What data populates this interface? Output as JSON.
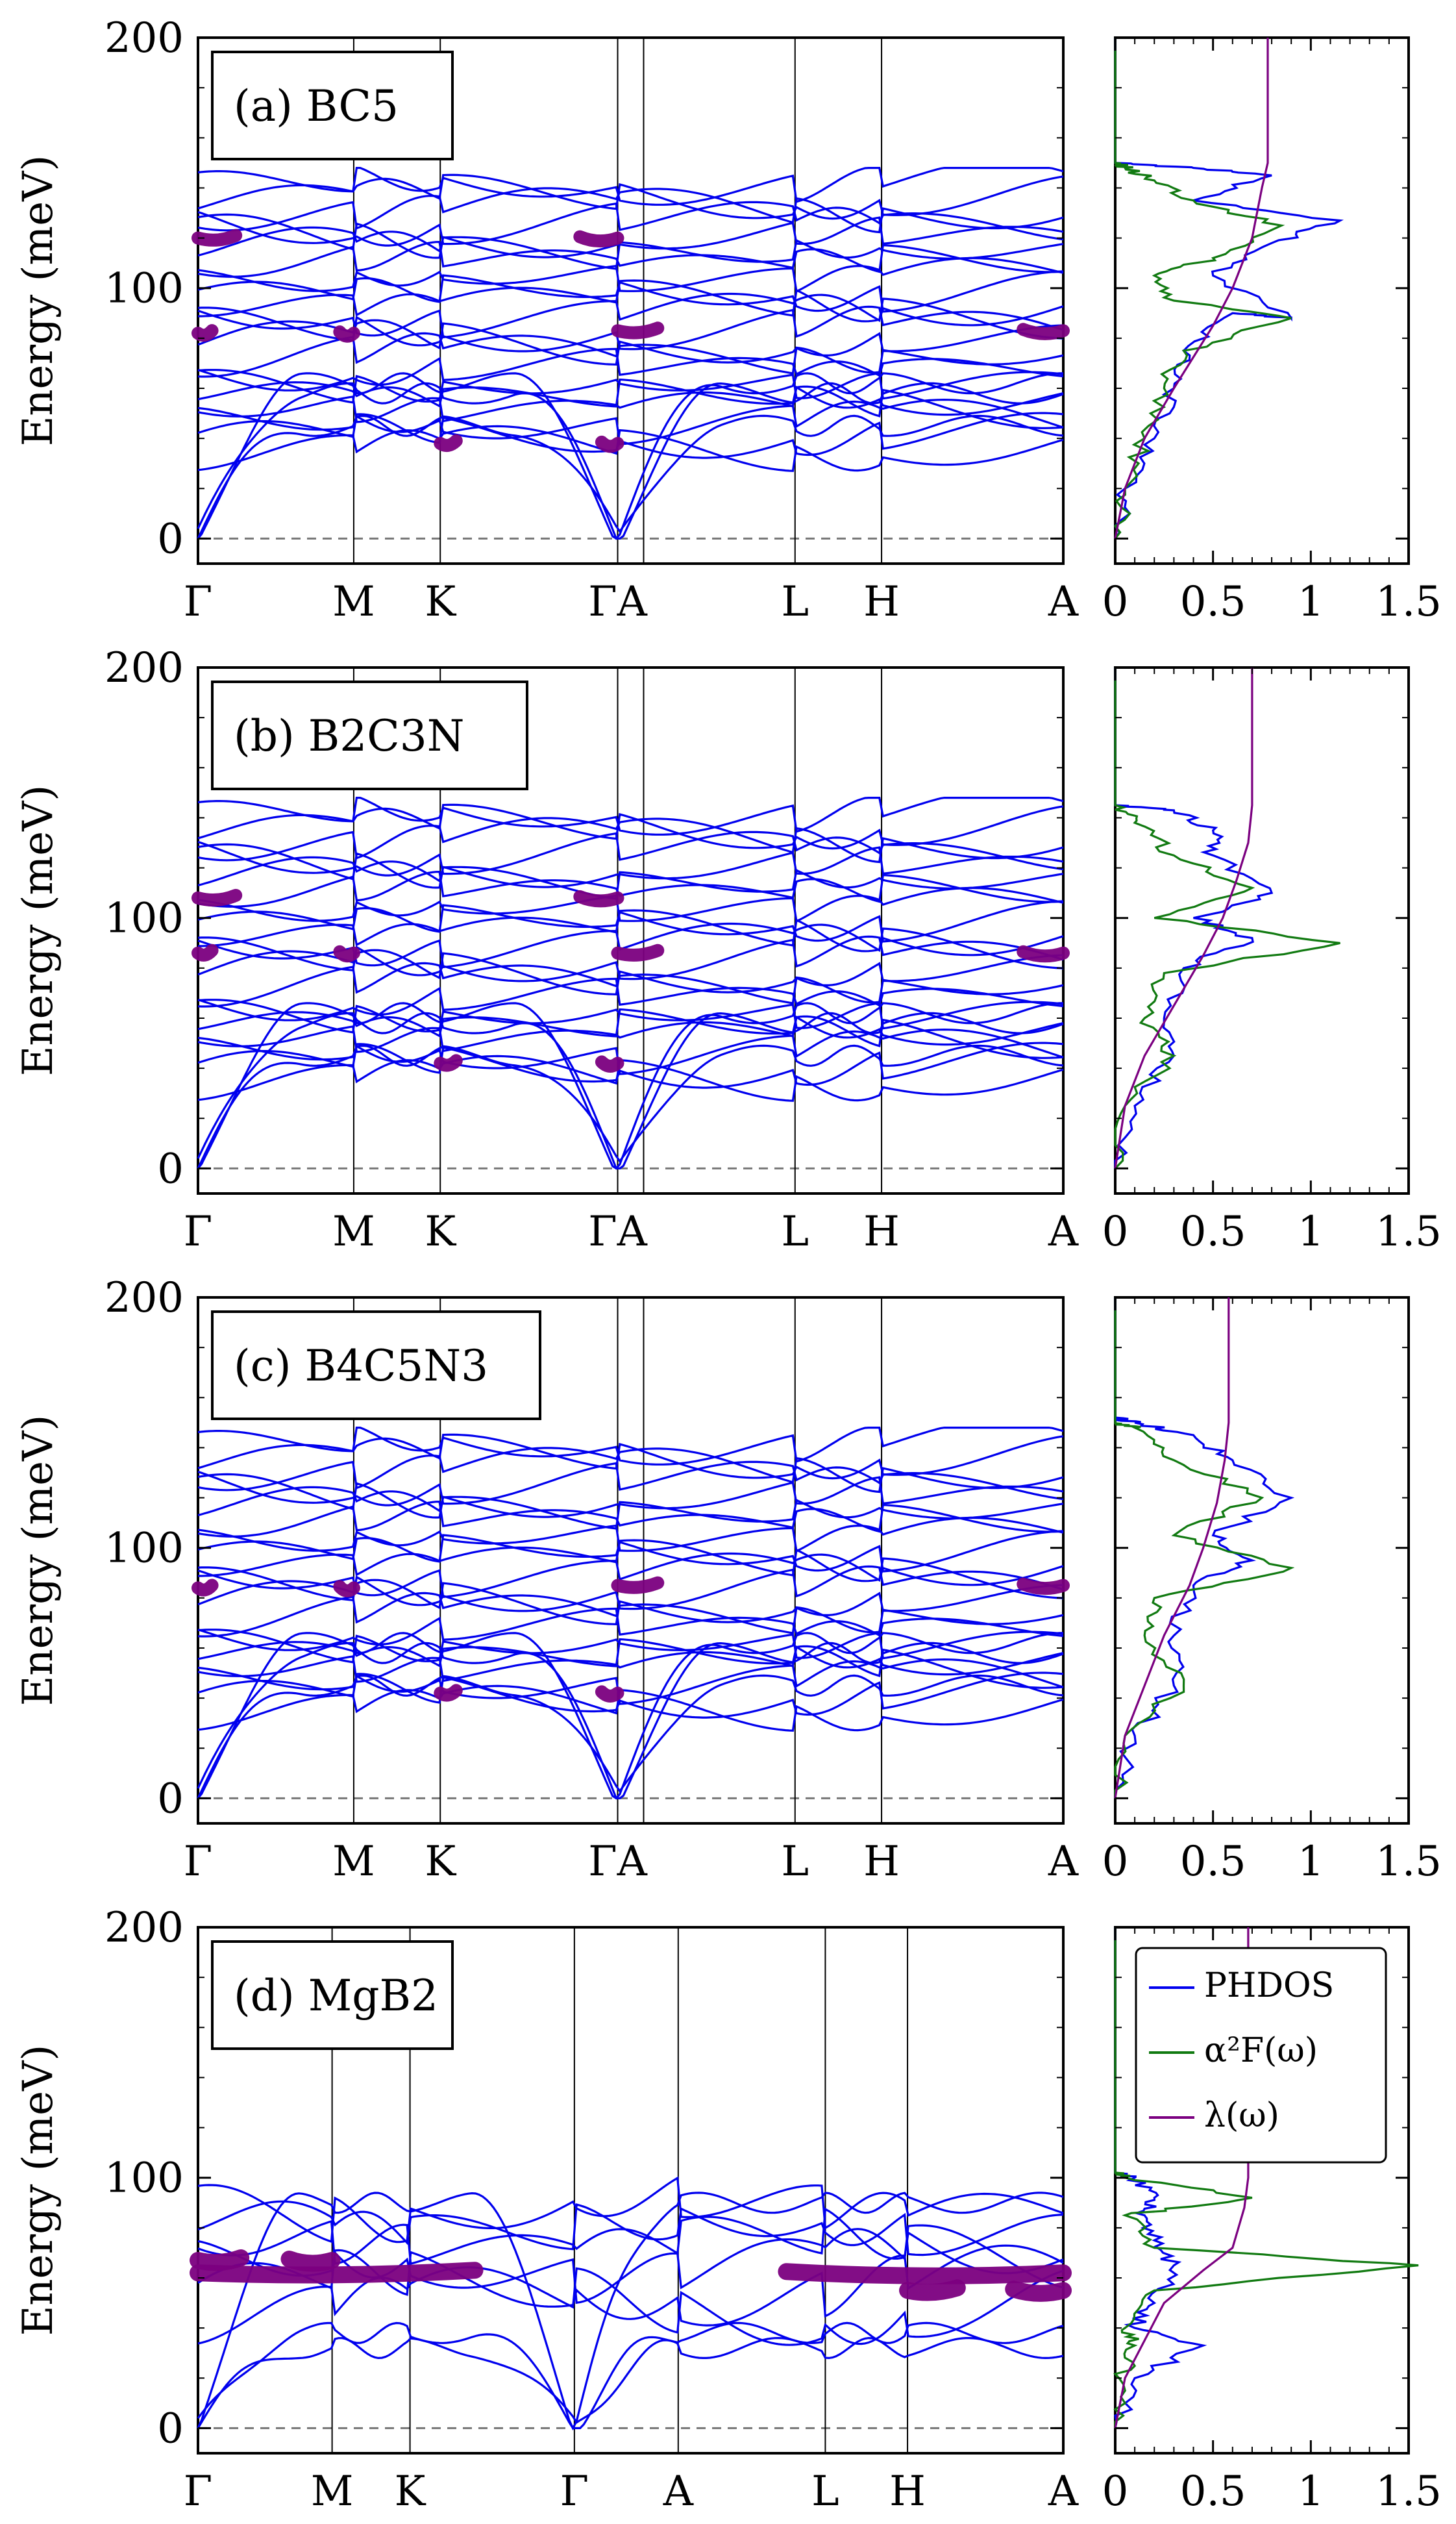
{
  "colors": {
    "band": "#0000ee",
    "band_highlight": "#7b0080",
    "phdos": "#0000ee",
    "a2f": "#117a11",
    "lambda": "#7b0080",
    "zero_line": "#777777"
  },
  "chart_data": [
    {
      "id": "a",
      "type": "line",
      "kind": "phonon-dispersion",
      "label_prefix": "(a) BC",
      "label_subs": [
        {
          "text": "5",
          "after": ""
        }
      ],
      "label_text": "(a) BC5",
      "ylabel": "Energy (meV)",
      "ylim": [
        -10,
        200
      ],
      "yticks": [
        0,
        100,
        200
      ],
      "path_labels": [
        "Γ",
        "M",
        "K",
        "ΓA",
        "L",
        "H",
        "A"
      ],
      "path_positions": [
        0,
        0.18,
        0.28,
        0.485,
        0.69,
        0.79,
        1.0
      ],
      "vlines": [
        0.18,
        0.28,
        0.485,
        0.515,
        0.69,
        0.79
      ],
      "bands_at_nodes": {
        "Gamma": [
          0,
          0,
          0,
          82,
          82,
          120,
          120,
          130,
          133,
          140,
          145
        ],
        "M": [
          58,
          63,
          75,
          88,
          105,
          120,
          128,
          135,
          141
        ],
        "K": [
          61,
          66,
          79,
          90,
          112,
          123,
          131,
          136,
          145
        ]
      },
      "highlight_regions": [
        {
          "from": "Γ",
          "to": "M",
          "energy": 82
        },
        {
          "from": "Γ",
          "to": "ΓA",
          "energy": 120
        },
        {
          "from": "K",
          "to": "ΓA",
          "energy": 38
        },
        {
          "from": "ΓA",
          "to": "A",
          "energy": 83
        }
      ]
    },
    {
      "id": "a_dos",
      "type": "line",
      "kind": "dos",
      "xlim": [
        0,
        1.5
      ],
      "xticks": [
        "0",
        "0.5",
        "1",
        "1.5"
      ],
      "ylim": [
        -10,
        200
      ],
      "series": [
        {
          "name": "PHDOS",
          "x": [
            0,
            0.05,
            0.2,
            0.3,
            0.35,
            0.6,
            0.9,
            0.5,
            0.8,
            1.15,
            0.4,
            0.8,
            0.4,
            0,
            0
          ],
          "y": [
            0,
            20,
            40,
            60,
            75,
            90,
            88,
            105,
            118,
            127,
            135,
            145,
            148,
            150,
            200
          ]
        },
        {
          "name": "α²F(ω)",
          "x": [
            0,
            0.05,
            0.15,
            0.25,
            0.35,
            0.9,
            0.3,
            0.2,
            0.5,
            0.85,
            0.4,
            0.2,
            0.05,
            0,
            0
          ],
          "y": [
            0,
            20,
            40,
            60,
            75,
            88,
            95,
            105,
            112,
            125,
            135,
            143,
            148,
            150,
            200
          ]
        },
        {
          "name": "λ(ω)",
          "x": [
            0,
            0.05,
            0.15,
            0.3,
            0.5,
            0.6,
            0.7,
            0.75,
            0.78,
            0.78
          ],
          "y": [
            0,
            20,
            40,
            60,
            85,
            100,
            120,
            140,
            150,
            200
          ]
        }
      ]
    },
    {
      "id": "b",
      "type": "line",
      "kind": "phonon-dispersion",
      "label_text": "(b) B2C3N",
      "ylabel": "Energy (meV)",
      "ylim": [
        -10,
        200
      ],
      "yticks": [
        0,
        100,
        200
      ],
      "path_labels": [
        "Γ",
        "M",
        "K",
        "ΓA",
        "L",
        "H",
        "A"
      ],
      "path_positions": [
        0,
        0.18,
        0.28,
        0.485,
        0.69,
        0.79,
        1.0
      ],
      "vlines": [
        0.18,
        0.28,
        0.485,
        0.515,
        0.69,
        0.79
      ],
      "highlight_regions": [
        {
          "from": "Γ",
          "to": "M",
          "energy": 86
        },
        {
          "from": "Γ",
          "to": "ΓA",
          "energy": 108
        },
        {
          "from": "K",
          "to": "ΓA",
          "energy": 42
        },
        {
          "from": "ΓA",
          "to": "A",
          "energy": 86
        }
      ]
    },
    {
      "id": "b_dos",
      "type": "line",
      "kind": "dos",
      "xlim": [
        0,
        1.5
      ],
      "xticks": [
        "0",
        "0.5",
        "1",
        "1.5"
      ],
      "ylim": [
        -10,
        200
      ],
      "series": [
        {
          "name": "PHDOS",
          "x": [
            0,
            0.1,
            0.3,
            0.25,
            0.35,
            0.7,
            0.4,
            0.8,
            0.5,
            0.5,
            0.3,
            0,
            0
          ],
          "y": [
            0,
            25,
            45,
            60,
            80,
            92,
            100,
            110,
            125,
            135,
            143,
            145,
            200
          ]
        },
        {
          "name": "α²F(ω)",
          "x": [
            0,
            0.05,
            0.3,
            0.15,
            0.25,
            1.15,
            0.2,
            0.7,
            0.3,
            0.1,
            0,
            0
          ],
          "y": [
            0,
            25,
            45,
            60,
            78,
            90,
            100,
            112,
            125,
            138,
            145,
            200
          ]
        },
        {
          "name": "λ(ω)",
          "x": [
            0,
            0.05,
            0.15,
            0.3,
            0.45,
            0.55,
            0.62,
            0.68,
            0.7,
            0.7
          ],
          "y": [
            0,
            25,
            45,
            65,
            85,
            100,
            115,
            130,
            145,
            200
          ]
        }
      ]
    },
    {
      "id": "c",
      "type": "line",
      "kind": "phonon-dispersion",
      "label_text": "(c) B4C5N3",
      "ylabel": "Energy (meV)",
      "ylim": [
        -10,
        200
      ],
      "yticks": [
        0,
        100,
        200
      ],
      "path_labels": [
        "Γ",
        "M",
        "K",
        "ΓA",
        "L",
        "H",
        "A"
      ],
      "path_positions": [
        0,
        0.18,
        0.28,
        0.485,
        0.69,
        0.79,
        1.0
      ],
      "vlines": [
        0.18,
        0.28,
        0.485,
        0.515,
        0.69,
        0.79
      ],
      "highlight_regions": [
        {
          "from": "Γ",
          "to": "M",
          "energy": 84
        },
        {
          "from": "K",
          "to": "ΓA",
          "energy": 42
        },
        {
          "from": "ΓA",
          "to": "A",
          "energy": 85
        }
      ]
    },
    {
      "id": "c_dos",
      "type": "line",
      "kind": "dos",
      "xlim": [
        0,
        1.5
      ],
      "xticks": [
        "0",
        "0.5",
        "1",
        "1.5"
      ],
      "ylim": [
        -10,
        200
      ],
      "series": [
        {
          "name": "PHDOS",
          "x": [
            0,
            0.1,
            0.3,
            0.3,
            0.4,
            0.7,
            0.5,
            0.9,
            0.6,
            0.4,
            0.1,
            0,
            0
          ],
          "y": [
            0,
            25,
            45,
            65,
            85,
            95,
            105,
            120,
            135,
            145,
            150,
            152,
            200
          ]
        },
        {
          "name": "α²F(ω)",
          "x": [
            0,
            0.05,
            0.35,
            0.15,
            0.2,
            0.9,
            0.3,
            0.75,
            0.3,
            0.1,
            0,
            0
          ],
          "y": [
            0,
            25,
            45,
            65,
            80,
            92,
            105,
            120,
            135,
            148,
            150,
            200
          ]
        },
        {
          "name": "λ(ω)",
          "x": [
            0,
            0.05,
            0.15,
            0.25,
            0.38,
            0.45,
            0.52,
            0.56,
            0.58,
            0.58
          ],
          "y": [
            0,
            25,
            45,
            65,
            85,
            100,
            118,
            135,
            150,
            200
          ]
        }
      ]
    },
    {
      "id": "d",
      "type": "line",
      "kind": "phonon-dispersion",
      "label_text": "(d) MgB2",
      "ylabel": "Energy (meV)",
      "ylim": [
        -10,
        200
      ],
      "yticks": [
        0,
        100,
        200
      ],
      "path_labels": [
        "Γ",
        "M",
        "K",
        "Γ",
        "A",
        "L",
        "H",
        "A"
      ],
      "path_positions": [
        0,
        0.155,
        0.245,
        0.435,
        0.555,
        0.725,
        0.82,
        1.0
      ],
      "vlines": [
        0.155,
        0.245,
        0.435,
        0.555,
        0.725,
        0.82
      ],
      "highlight_regions": [
        {
          "from": "Γ",
          "to": "M",
          "energy": 67
        },
        {
          "from": "Γ",
          "to": "A",
          "energy": 62
        },
        {
          "from": "H",
          "to": "A",
          "energy": 55
        }
      ],
      "legend": [
        "PHDOS",
        "α²F(ω)",
        "λ(ω)"
      ]
    },
    {
      "id": "d_dos",
      "type": "line",
      "kind": "dos",
      "xlim": [
        0,
        1.5
      ],
      "xticks": [
        "0",
        "0.5",
        "1",
        "1.5"
      ],
      "ylim": [
        -10,
        200
      ],
      "series": [
        {
          "name": "PHDOS",
          "x": [
            0,
            0.1,
            0.45,
            0.1,
            0.2,
            0.3,
            0.2,
            0.15,
            0.2,
            0.1,
            0,
            0
          ],
          "y": [
            0,
            20,
            33,
            40,
            50,
            65,
            75,
            85,
            92,
            100,
            102,
            200
          ]
        },
        {
          "name": "α²F(ω)",
          "x": [
            0,
            0.02,
            0.1,
            0.05,
            0.2,
            1.55,
            0.2,
            0.05,
            0.7,
            0.05,
            0,
            0
          ],
          "y": [
            0,
            20,
            33,
            40,
            55,
            65,
            72,
            85,
            92,
            100,
            102,
            200
          ]
        },
        {
          "name": "λ(ω)",
          "x": [
            0,
            0.05,
            0.15,
            0.25,
            0.45,
            0.6,
            0.66,
            0.68,
            0.68
          ],
          "y": [
            0,
            20,
            35,
            50,
            63,
            72,
            88,
            100,
            200
          ]
        }
      ]
    }
  ],
  "legend": {
    "phdos_label": "PHDOS",
    "a2f_label": "α²F(ω)",
    "lambda_label": "λ(ω)"
  }
}
